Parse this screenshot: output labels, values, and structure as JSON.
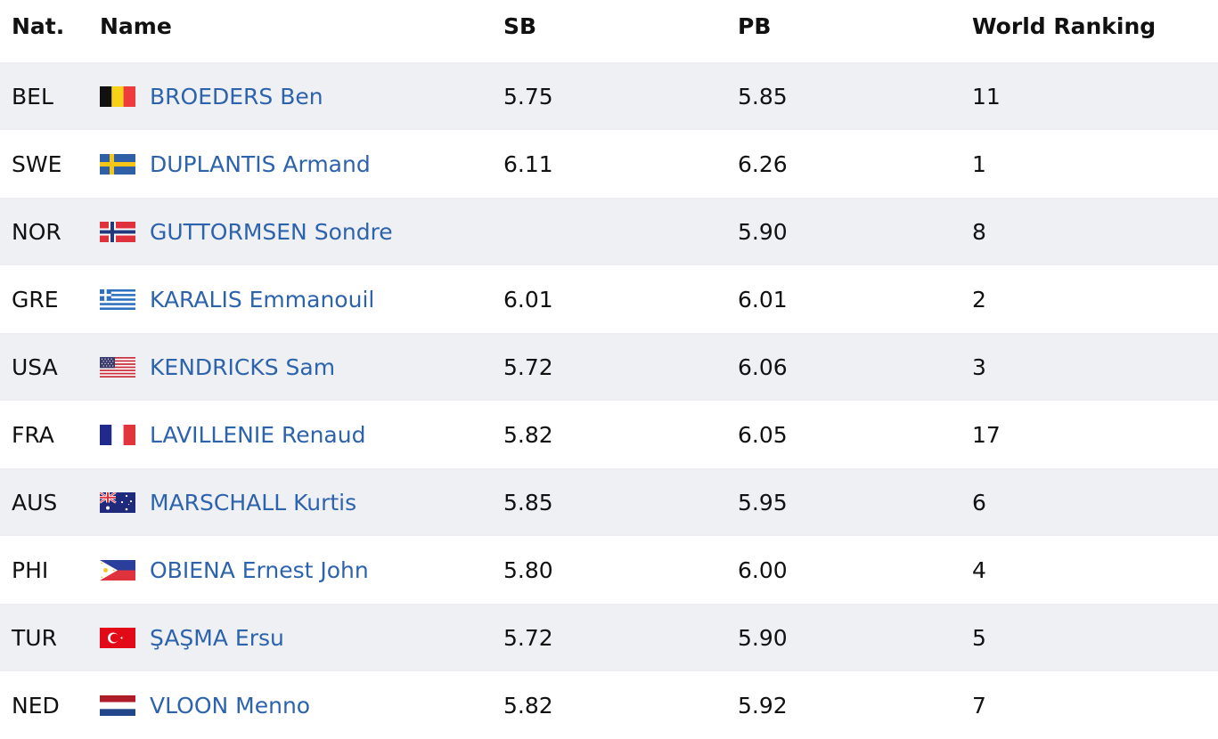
{
  "header": {
    "nat": "Nat.",
    "name": "Name",
    "sb": "SB",
    "pb": "PB",
    "rank": "World Ranking"
  },
  "rows": [
    {
      "nat": "BEL",
      "flag": "belgium-flag",
      "name": "BROEDERS Ben",
      "sb": "5.75",
      "pb": "5.85",
      "rank": "11"
    },
    {
      "nat": "SWE",
      "flag": "sweden-flag",
      "name": "DUPLANTIS Armand",
      "sb": "6.11",
      "pb": "6.26",
      "rank": "1"
    },
    {
      "nat": "NOR",
      "flag": "norway-flag",
      "name": "GUTTORMSEN Sondre",
      "sb": "",
      "pb": "5.90",
      "rank": "8"
    },
    {
      "nat": "GRE",
      "flag": "greece-flag",
      "name": "KARALIS Emmanouil",
      "sb": "6.01",
      "pb": "6.01",
      "rank": "2"
    },
    {
      "nat": "USA",
      "flag": "usa-flag",
      "name": "KENDRICKS Sam",
      "sb": "5.72",
      "pb": "6.06",
      "rank": "3"
    },
    {
      "nat": "FRA",
      "flag": "france-flag",
      "name": "LAVILLENIE Renaud",
      "sb": "5.82",
      "pb": "6.05",
      "rank": "17"
    },
    {
      "nat": "AUS",
      "flag": "australia-flag",
      "name": "MARSCHALL Kurtis",
      "sb": "5.85",
      "pb": "5.95",
      "rank": "6"
    },
    {
      "nat": "PHI",
      "flag": "philippines-flag",
      "name": "OBIENA Ernest John",
      "sb": "5.80",
      "pb": "6.00",
      "rank": "4"
    },
    {
      "nat": "TUR",
      "flag": "turkey-flag",
      "name": "ŞAŞMA Ersu",
      "sb": "5.72",
      "pb": "5.90",
      "rank": "5"
    },
    {
      "nat": "NED",
      "flag": "netherlands-flag",
      "name": "VLOON Menno",
      "sb": "5.82",
      "pb": "5.92",
      "rank": "7"
    }
  ],
  "colors": {
    "link": "#2d62ad",
    "row_shade": "#eef0f4"
  }
}
